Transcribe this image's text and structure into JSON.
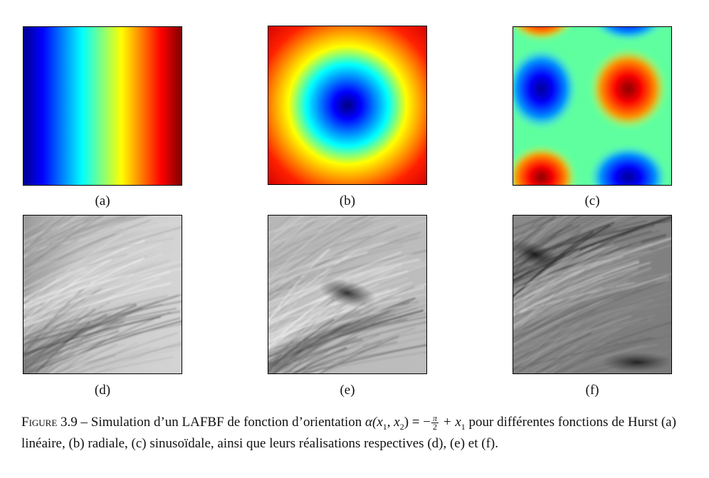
{
  "figure": {
    "panels": [
      {
        "id": "a",
        "label": "(a)",
        "kind": "hurst-linear",
        "colormap": "jet"
      },
      {
        "id": "b",
        "label": "(b)",
        "kind": "hurst-radial",
        "colormap": "jet"
      },
      {
        "id": "c",
        "label": "(c)",
        "kind": "hurst-sinusoidal",
        "colormap": "jet"
      },
      {
        "id": "d",
        "label": "(d)",
        "kind": "texture-realization",
        "colormap": "gray"
      },
      {
        "id": "e",
        "label": "(e)",
        "kind": "texture-realization",
        "colormap": "gray"
      },
      {
        "id": "f",
        "label": "(f)",
        "kind": "texture-realization",
        "colormap": "gray"
      }
    ],
    "caption": {
      "figure_label": "Figure 3.9",
      "dash": " – ",
      "text_before_math": "Simulation d’un LAFBF de fonction d’orientation ",
      "math_alpha": "α(x",
      "math_mid": ", x",
      "math_eq": ") = −",
      "math_frac_num": "π",
      "math_frac_den": "2",
      "math_tail": " + x",
      "text_after_math": " pour différentes fonctions de Hurst (a) linéaire, (b) radiale, (c) sinusoïdale, ainsi que leurs réalisations respectives (d), (e) et (f).",
      "sub1": "1",
      "sub2": "2"
    }
  }
}
